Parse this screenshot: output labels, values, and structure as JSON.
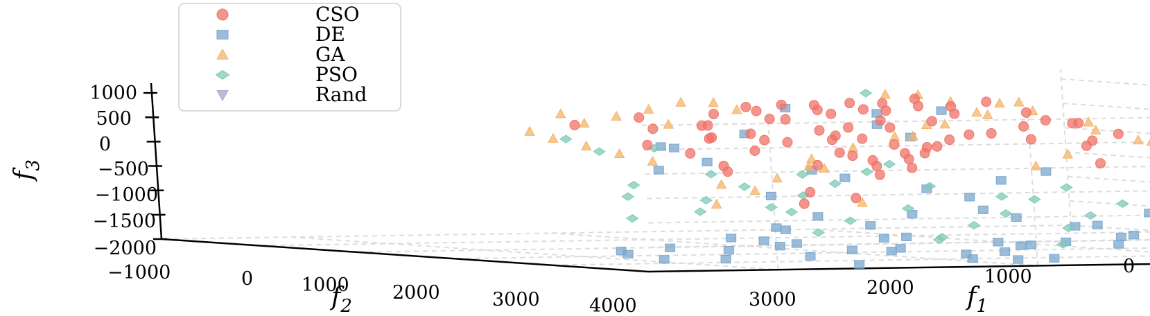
{
  "chart_data": {
    "type": "scatter",
    "title": "",
    "projection": "3d",
    "xlabel": "f1",
    "ylabel": "f2",
    "zlabel": "f3",
    "x_ticks": [
      "0",
      "1000",
      "2000",
      "3000"
    ],
    "y_ticks": [
      "−1000",
      "0",
      "1000",
      "2000",
      "3000",
      "4000"
    ],
    "z_ticks": [
      "1000",
      "500",
      "0",
      "−500",
      "−1000",
      "−1500",
      "−2000"
    ],
    "xlim": [
      0,
      3500
    ],
    "ylim": [
      -1000,
      4000
    ],
    "zlim": [
      -2000,
      1200
    ],
    "grid": true,
    "legend_position": "top-left",
    "series": [
      {
        "name": "CSO",
        "marker": "circle",
        "color": "#f07267",
        "points": [
          [
            1500,
            1500,
            1050
          ],
          [
            1700,
            1700,
            1000
          ],
          [
            1900,
            1900,
            1050
          ],
          [
            1600,
            1800,
            950
          ],
          [
            1800,
            2000,
            900
          ],
          [
            2000,
            1800,
            1000
          ],
          [
            2200,
            2000,
            1050
          ],
          [
            1400,
            1600,
            900
          ],
          [
            1300,
            1700,
            1000
          ],
          [
            1700,
            1500,
            850
          ],
          [
            1900,
            1700,
            800
          ],
          [
            2100,
            2100,
            950
          ],
          [
            2300,
            1900,
            1000
          ],
          [
            2500,
            2100,
            900
          ],
          [
            1500,
            1900,
            800
          ],
          [
            1700,
            2200,
            700
          ],
          [
            1900,
            2300,
            600
          ],
          [
            2100,
            1600,
            700
          ],
          [
            2300,
            2300,
            800
          ],
          [
            1600,
            1400,
            600
          ],
          [
            1800,
            1600,
            500
          ],
          [
            2000,
            2000,
            400
          ],
          [
            2200,
            1800,
            300
          ],
          [
            2400,
            2200,
            500
          ],
          [
            1400,
            2000,
            400
          ],
          [
            1600,
            2100,
            300
          ],
          [
            1800,
            2400,
            200
          ],
          [
            2000,
            1500,
            200
          ],
          [
            2200,
            2500,
            400
          ],
          [
            2400,
            1700,
            600
          ],
          [
            1500,
            1700,
            100
          ],
          [
            1700,
            1900,
            0
          ],
          [
            1900,
            2100,
            -100
          ],
          [
            2100,
            2300,
            100
          ],
          [
            2300,
            1500,
            300
          ],
          [
            2600,
            2300,
            700
          ],
          [
            2700,
            2000,
            600
          ],
          [
            1300,
            1500,
            300
          ],
          [
            1200,
            1800,
            500
          ],
          [
            1100,
            1600,
            200
          ],
          [
            1000,
            1900,
            100
          ],
          [
            2000,
            2600,
            300
          ],
          [
            2200,
            2700,
            100
          ],
          [
            2500,
            2500,
            200
          ],
          [
            1800,
            1300,
            400
          ],
          [
            1600,
            1200,
            200
          ],
          [
            1400,
            1300,
            -100
          ],
          [
            1900,
            2500,
            -200
          ],
          [
            2100,
            2700,
            -300
          ],
          [
            2300,
            2600,
            -100
          ],
          [
            1700,
            1600,
            -300
          ],
          [
            1500,
            1400,
            -200
          ],
          [
            2400,
            1900,
            -200
          ],
          [
            2600,
            2100,
            100
          ],
          [
            2800,
            2200,
            300
          ],
          [
            1000,
            1300,
            700
          ],
          [
            900,
            1500,
            500
          ],
          [
            800,
            1700,
            300
          ],
          [
            1100,
            2100,
            600
          ],
          [
            2000,
            1200,
            800
          ],
          [
            2900,
            2400,
            900
          ],
          [
            3000,
            2000,
            700
          ],
          [
            2700,
            2600,
            500
          ],
          [
            1300,
            2300,
            700
          ],
          [
            1200,
            2500,
            300
          ],
          [
            1100,
            2300,
            -200
          ],
          [
            2200,
            1400,
            -400
          ],
          [
            2000,
            1700,
            -800
          ],
          [
            1900,
            1900,
            -900
          ],
          [
            2100,
            1900,
            -1000
          ]
        ]
      },
      {
        "name": "DE",
        "marker": "square",
        "color": "#7ba7cc",
        "points": [
          [
            1500,
            2600,
            -1800
          ],
          [
            1700,
            2800,
            -1700
          ],
          [
            1900,
            3000,
            -1900
          ],
          [
            2100,
            2700,
            -1600
          ],
          [
            2300,
            2900,
            -1800
          ],
          [
            1600,
            3100,
            -2000
          ],
          [
            1800,
            3300,
            -1700
          ],
          [
            2000,
            2500,
            -1900
          ],
          [
            2200,
            3200,
            -1500
          ],
          [
            2400,
            2600,
            -1700
          ],
          [
            1400,
            2800,
            -1400
          ],
          [
            1300,
            3000,
            -1600
          ],
          [
            1200,
            2700,
            -1800
          ],
          [
            2500,
            3000,
            -1900
          ],
          [
            2600,
            2800,
            -1600
          ],
          [
            1100,
            2900,
            -1500
          ],
          [
            1000,
            3100,
            -1700
          ],
          [
            900,
            2800,
            -1900
          ],
          [
            2700,
            2700,
            -1800
          ],
          [
            2800,
            3000,
            -1500
          ],
          [
            1500,
            3300,
            -1300
          ],
          [
            1700,
            3500,
            -1600
          ],
          [
            1900,
            3400,
            -1800
          ],
          [
            2100,
            3600,
            -1900
          ],
          [
            1400,
            3400,
            -1500
          ],
          [
            1200,
            3300,
            -1900
          ],
          [
            2300,
            3400,
            -1700
          ],
          [
            2500,
            3500,
            -2000
          ],
          [
            2000,
            2300,
            -1400
          ],
          [
            1800,
            2200,
            -1200
          ],
          [
            1600,
            2400,
            -1100
          ],
          [
            1400,
            2200,
            -1300
          ],
          [
            2200,
            2300,
            -1200
          ],
          [
            2400,
            2400,
            -1400
          ],
          [
            1000,
            2500,
            -1200
          ],
          [
            800,
            2600,
            -1500
          ],
          [
            700,
            2900,
            -1800
          ],
          [
            600,
            3100,
            -1600
          ],
          [
            500,
            2800,
            -1400
          ],
          [
            2900,
            3200,
            -1900
          ],
          [
            3000,
            2900,
            -1700
          ],
          [
            3100,
            3100,
            -1900
          ],
          [
            1500,
            2000,
            -900
          ],
          [
            1700,
            2100,
            -700
          ],
          [
            1900,
            1800,
            -500
          ],
          [
            2100,
            2000,
            -300
          ],
          [
            1300,
            1800,
            -600
          ],
          [
            1200,
            2000,
            -400
          ],
          [
            2300,
            2100,
            -800
          ],
          [
            1600,
            1700,
            300
          ],
          [
            1800,
            1900,
            600
          ],
          [
            2000,
            1500,
            900
          ],
          [
            2200,
            1600,
            400
          ],
          [
            1400,
            1500,
            800
          ],
          [
            2600,
            1800,
            200
          ],
          [
            1000,
            3500,
            -1300
          ],
          [
            900,
            3300,
            -1100
          ],
          [
            1100,
            3700,
            -1800
          ],
          [
            1300,
            3600,
            -1900
          ],
          [
            2700,
            3300,
            -1300
          ],
          [
            2800,
            3500,
            -1600
          ],
          [
            2000,
            3800,
            -1900
          ],
          [
            3200,
            3000,
            -1800
          ],
          [
            3300,
            3200,
            -1700
          ],
          [
            2500,
            2000,
            -100
          ],
          [
            2400,
            1400,
            100
          ],
          [
            1500,
            1100,
            700
          ],
          [
            2800,
            2300,
            -200
          ],
          [
            700,
            1800,
            -600
          ],
          [
            600,
            2100,
            -1000
          ]
        ]
      },
      {
        "name": "GA",
        "marker": "triangle",
        "color": "#f5b36a",
        "points": [
          [
            1500,
            1200,
            1100
          ],
          [
            1300,
            1000,
            1050
          ],
          [
            1100,
            1300,
            900
          ],
          [
            900,
            1100,
            700
          ],
          [
            800,
            1400,
            500
          ],
          [
            700,
            1200,
            300
          ],
          [
            600,
            1500,
            100
          ],
          [
            1000,
            900,
            600
          ],
          [
            1200,
            800,
            400
          ],
          [
            1400,
            1000,
            200
          ],
          [
            1600,
            1100,
            0
          ],
          [
            1800,
            1200,
            -200
          ],
          [
            2000,
            1000,
            800
          ],
          [
            2200,
            1300,
            1000
          ],
          [
            2400,
            1500,
            1050
          ],
          [
            2600,
            1700,
            950
          ],
          [
            2800,
            1900,
            850
          ],
          [
            3000,
            2100,
            750
          ],
          [
            3100,
            1800,
            550
          ],
          [
            2900,
            1500,
            350
          ],
          [
            2700,
            1300,
            150
          ],
          [
            2500,
            1100,
            -50
          ],
          [
            2300,
            900,
            -250
          ],
          [
            1700,
            900,
            -400
          ],
          [
            1900,
            1100,
            -600
          ],
          [
            2100,
            1400,
            -800
          ],
          [
            2400,
            1800,
            -1000
          ],
          [
            1000,
            1700,
            -100
          ],
          [
            800,
            1900,
            200
          ],
          [
            1200,
            1900,
            -300
          ],
          [
            1600,
            2400,
            900
          ],
          [
            1800,
            2600,
            700
          ],
          [
            2000,
            2800,
            500
          ],
          [
            2200,
            2400,
            -200
          ],
          [
            2600,
            2400,
            -500
          ],
          [
            1400,
            1600,
            1000
          ],
          [
            1100,
            1500,
            950
          ],
          [
            500,
            1300,
            400
          ],
          [
            400,
            1600,
            200
          ],
          [
            3200,
            2400,
            1000
          ],
          [
            2900,
            2700,
            800
          ],
          [
            2100,
            2500,
            -900
          ]
        ]
      },
      {
        "name": "PSO",
        "marker": "diamond",
        "color": "#7fcab8",
        "points": [
          [
            1500,
            1000,
            1100
          ],
          [
            2000,
            2300,
            -300
          ],
          [
            2200,
            2500,
            -500
          ],
          [
            2400,
            2700,
            -700
          ],
          [
            2600,
            2900,
            -900
          ],
          [
            1800,
            2400,
            -600
          ],
          [
            1600,
            2600,
            -800
          ],
          [
            2000,
            2700,
            -1000
          ],
          [
            2300,
            2900,
            -1200
          ],
          [
            2500,
            3100,
            -1400
          ],
          [
            1700,
            2900,
            -1100
          ],
          [
            1900,
            3100,
            -1300
          ],
          [
            2100,
            3300,
            -1500
          ],
          [
            2700,
            2500,
            -800
          ],
          [
            2800,
            2700,
            -1000
          ],
          [
            1400,
            2400,
            -900
          ],
          [
            1300,
            2700,
            -1200
          ],
          [
            1500,
            3000,
            -1400
          ],
          [
            2900,
            2300,
            -500
          ],
          [
            3000,
            2500,
            -700
          ],
          [
            1800,
            2000,
            -200
          ],
          [
            2100,
            1900,
            -400
          ],
          [
            2400,
            2100,
            -600
          ],
          [
            2700,
            2000,
            200
          ],
          [
            3000,
            1900,
            400
          ],
          [
            2800,
            1700,
            100
          ],
          [
            1200,
            2200,
            -700
          ],
          [
            1100,
            2500,
            -1000
          ],
          [
            2600,
            2300,
            -300
          ],
          [
            2300,
            2300,
            -1100
          ],
          [
            2000,
            3000,
            -1600
          ],
          [
            1600,
            3200,
            -1700
          ],
          [
            3100,
            2800,
            -1100
          ]
        ]
      },
      {
        "name": "Rand",
        "marker": "triangle-down",
        "color": "#a8a2cf",
        "points": []
      }
    ]
  }
}
